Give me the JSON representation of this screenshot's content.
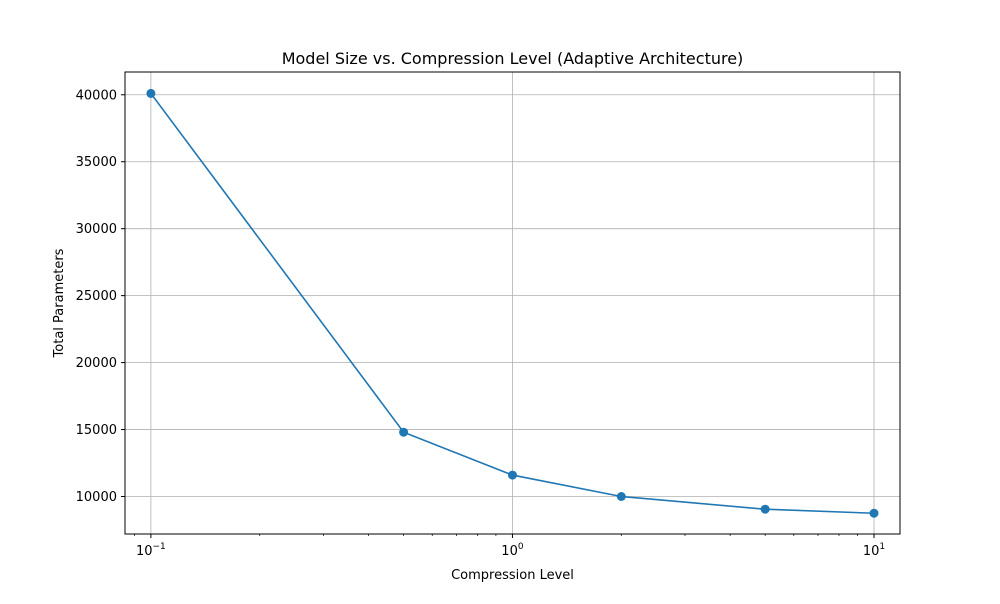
{
  "colors": {
    "line": "#1f77b4",
    "grid": "#b0b0b0",
    "axes": "#000000",
    "background": "#ffffff"
  },
  "chart_data": {
    "type": "line",
    "title": "Model Size vs. Compression Level (Adaptive Architecture)",
    "xlabel": "Compression Level",
    "ylabel": "Total Parameters",
    "xscale": "log",
    "xlim": [
      0.0848,
      11.8
    ],
    "ylim": [
      7200,
      41700
    ],
    "grid": true,
    "marker": "circle",
    "x_ticks": [
      {
        "value": 0.1,
        "base": "10",
        "exp": "−1"
      },
      {
        "value": 1,
        "base": "10",
        "exp": "0"
      },
      {
        "value": 10,
        "base": "10",
        "exp": "1"
      }
    ],
    "y_ticks": [
      10000,
      15000,
      20000,
      25000,
      30000,
      35000,
      40000
    ],
    "y_tick_labels": [
      "10000",
      "15000",
      "20000",
      "25000",
      "30000",
      "35000",
      "40000"
    ],
    "series": [
      {
        "x": [
          0.1,
          0.5,
          1,
          2,
          5,
          10
        ],
        "y": [
          40100,
          14800,
          11600,
          10000,
          9050,
          8750
        ]
      }
    ]
  }
}
